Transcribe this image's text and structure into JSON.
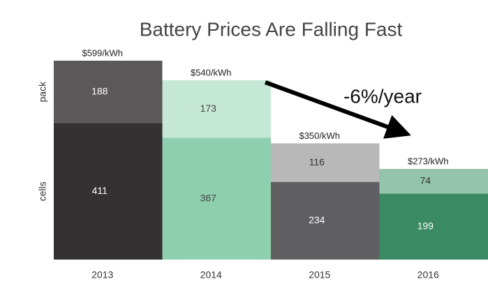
{
  "chart_data": {
    "type": "stacked-bar",
    "title": "Battery Prices Are Falling Fast",
    "categories": [
      "2013",
      "2014",
      "2015",
      "2016"
    ],
    "series": [
      {
        "name": "cells",
        "colors": [
          "#333132",
          "#8ecfb0",
          "#5f5f62",
          "#3a8a63"
        ],
        "label_colors": [
          "#ffffff",
          "#444444",
          "#ffffff",
          "#ffffff"
        ],
        "values": [
          411,
          367,
          234,
          199
        ]
      },
      {
        "name": "pack",
        "colors": [
          "#5a5859",
          "#c5e8d6",
          "#b9b8b9",
          "#94c4ac"
        ],
        "label_colors": [
          "#ffffff",
          "#444444",
          "#333333",
          "#333333"
        ],
        "values": [
          188,
          173,
          116,
          74
        ]
      }
    ],
    "total_labels": [
      "$599/kWh",
      "$540/kWh",
      "$350/kWh",
      "$273/kWh"
    ],
    "annotation": "-6%/year",
    "ylim": [
      0,
      600
    ]
  }
}
